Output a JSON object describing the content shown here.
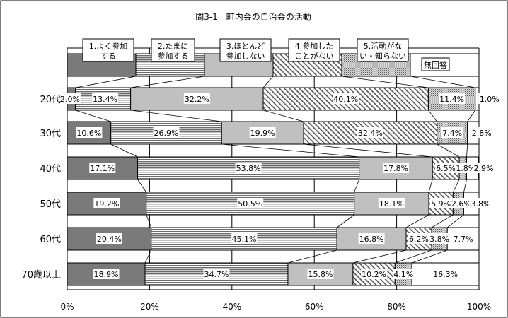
{
  "chart_data": {
    "type": "bar",
    "stacked": true,
    "orientation": "horizontal",
    "title": "問3-1　町内会の自治会の活動",
    "categories": [
      "20代",
      "30代",
      "40代",
      "50代",
      "60代",
      "70歳以上"
    ],
    "series": [
      {
        "name": "1.よく参加する",
        "legend_lines": [
          "1.よく参加",
          "する"
        ],
        "pattern": "dark-gray",
        "color": "#7a7a7a",
        "values": [
          2.0,
          10.6,
          17.1,
          19.2,
          20.4,
          18.9
        ],
        "labels": [
          "2.0%",
          "10.6%",
          "17.1%",
          "19.2%",
          "20.4%",
          "18.9%"
        ]
      },
      {
        "name": "2.たまに参加する",
        "legend_lines": [
          "2.たまに",
          "参加する"
        ],
        "pattern": "horizontal-stripes",
        "color": "#8a8a8a",
        "values": [
          13.4,
          26.9,
          53.8,
          50.5,
          45.1,
          34.7
        ],
        "labels": [
          "13.4%",
          "26.9%",
          "53.8%",
          "50.5%",
          "45.1%",
          "34.7%"
        ]
      },
      {
        "name": "3.ほとんど参加しない",
        "legend_lines": [
          "3.ほとんど",
          "参加しない"
        ],
        "pattern": "light-gray",
        "color": "#c0c0c0",
        "values": [
          32.2,
          19.9,
          17.8,
          18.1,
          16.8,
          15.8
        ],
        "labels": [
          "32.2%",
          "19.9%",
          "17.8%",
          "18.1%",
          "16.8%",
          "15.8%"
        ]
      },
      {
        "name": "4.参加したことがない",
        "legend_lines": [
          "4.参加した",
          "ことがない"
        ],
        "pattern": "diagonal-stripes",
        "color": "#707070",
        "values": [
          40.1,
          32.4,
          6.5,
          5.9,
          6.2,
          10.2
        ],
        "labels": [
          "40.1%",
          "32.4%",
          "6.5%",
          "5.9%",
          "6.2%",
          "10.2%"
        ]
      },
      {
        "name": "5.活動がない・知らない",
        "legend_lines": [
          "5.活動がな",
          "い・知らない"
        ],
        "pattern": "dots",
        "color": "#9a9a9a",
        "values": [
          11.4,
          7.4,
          1.8,
          2.6,
          3.8,
          4.1
        ],
        "labels": [
          "11.4%",
          "7.4%",
          "1.8%",
          "2.6%",
          "3.8%",
          "4.1%"
        ]
      },
      {
        "name": "無回答",
        "legend_lines": [
          "無回答"
        ],
        "pattern": "white",
        "color": "#ffffff",
        "values": [
          1.0,
          2.8,
          2.9,
          3.8,
          7.7,
          16.3
        ],
        "labels": [
          "1.0%",
          "2.8%",
          "2.9%",
          "3.8%",
          "7.7%",
          "16.3%"
        ]
      }
    ],
    "xlim": [
      0,
      100
    ],
    "xticks": [
      0,
      20,
      40,
      60,
      80,
      100
    ],
    "xtick_labels": [
      "0%",
      "20%",
      "40%",
      "60%",
      "80%",
      "100%"
    ],
    "xlabel": "",
    "ylabel": "",
    "grid": true,
    "legend_position": "top"
  }
}
